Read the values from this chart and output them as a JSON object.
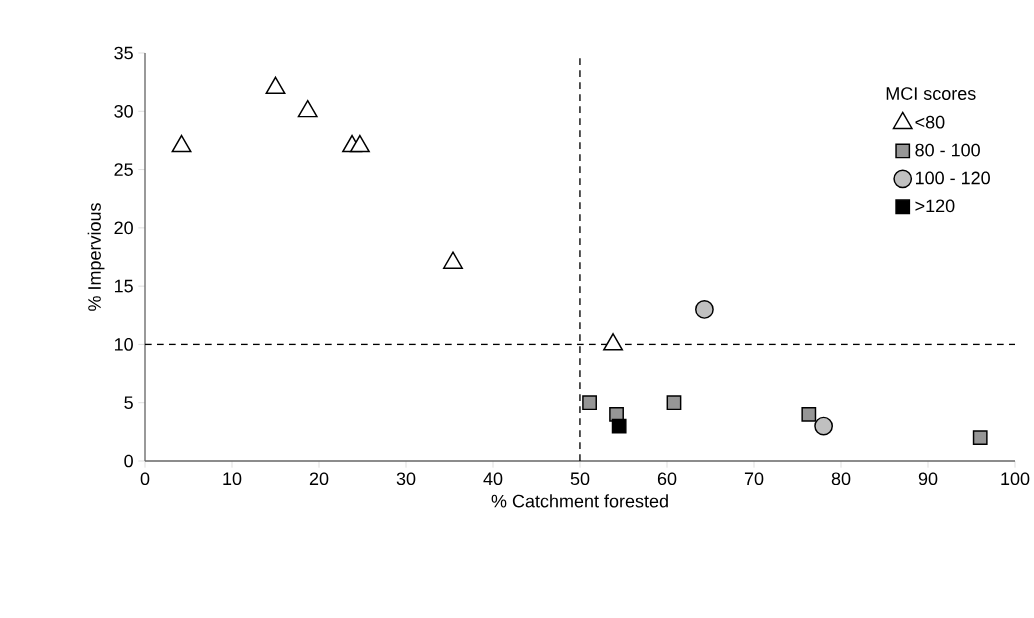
{
  "chart_data": {
    "type": "scatter",
    "xlabel": "% Catchment forested",
    "ylabel": "% Impervious",
    "legend_title": "MCI scores",
    "xlim": [
      0,
      100
    ],
    "ylim": [
      0,
      35
    ],
    "xticks": [
      0,
      10,
      20,
      30,
      40,
      50,
      60,
      70,
      80,
      90,
      100
    ],
    "yticks": [
      0,
      5,
      10,
      15,
      20,
      25,
      30,
      35
    ],
    "legend": "top right",
    "ref_lines": [
      {
        "axis": "x",
        "value": 50,
        "line_style": "dashed",
        "color": "#000000"
      },
      {
        "axis": "y",
        "value": 10,
        "line_style": "dashed",
        "color": "#000000"
      }
    ],
    "series": [
      {
        "name": "<80",
        "color": "#ffffff",
        "marker": "triangle",
        "x": [
          4.2,
          15,
          18.7,
          23.8,
          24.7,
          35.4,
          53.8
        ],
        "values": [
          27,
          32,
          30,
          27,
          27,
          17,
          10
        ]
      },
      {
        "name": "80 - 100",
        "color": "#969696",
        "marker": "square",
        "x": [
          51.1,
          54.2,
          60.8,
          76.3,
          96
        ],
        "values": [
          5,
          4,
          5,
          4,
          2
        ]
      },
      {
        "name": "100 - 120",
        "color": "#c0c0c0",
        "marker": "circle",
        "x": [
          64.3,
          78
        ],
        "values": [
          13,
          3
        ]
      },
      {
        "name": ">120",
        "color": "#000000",
        "marker": "square",
        "x": [
          54.5
        ],
        "values": [
          3
        ]
      }
    ]
  }
}
